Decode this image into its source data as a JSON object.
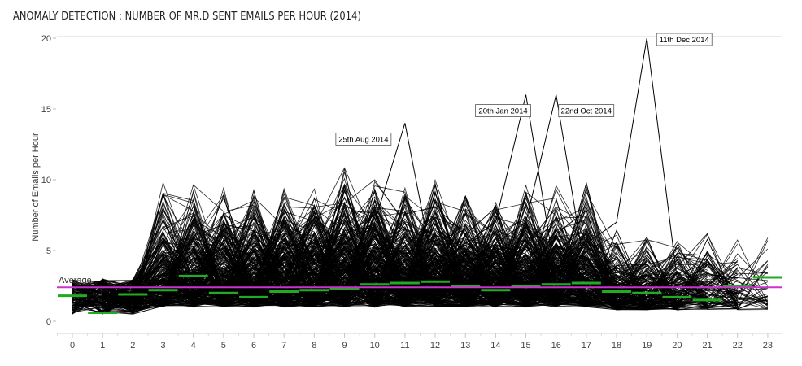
{
  "chart_data": {
    "type": "line",
    "title": "ANOMALY DETECTION : NUMBER OF MR.D SENT EMAILS PER HOUR (2014)",
    "xlabel": "",
    "ylabel": "Number of Emails per Hour",
    "x": [
      0,
      1,
      2,
      3,
      4,
      5,
      6,
      7,
      8,
      9,
      10,
      11,
      12,
      13,
      14,
      15,
      16,
      17,
      18,
      19,
      20,
      21,
      22,
      23
    ],
    "x_tick_labels": [
      "0",
      "1",
      "2",
      "3",
      "4",
      "5",
      "6",
      "7",
      "8",
      "9",
      "10",
      "11",
      "12",
      "13",
      "14",
      "15",
      "16",
      "17",
      "18",
      "19",
      "20",
      "21",
      "22",
      "23"
    ],
    "y_tick_labels": [
      "0",
      "5",
      "10",
      "15",
      "20"
    ],
    "ylim": [
      0,
      20
    ],
    "xlim": [
      -0.5,
      23.5
    ],
    "grid": "horizontal-top-line-only",
    "line_color": "#000000",
    "series_note_count": 365,
    "hourly_mean_color": "#22aa22",
    "hourly_mean": [
      1.8,
      0.6,
      1.9,
      2.2,
      3.2,
      2.0,
      1.7,
      2.1,
      2.2,
      2.3,
      2.6,
      2.7,
      2.8,
      2.5,
      2.2,
      2.5,
      2.6,
      2.7,
      2.1,
      2.0,
      1.7,
      1.5,
      2.5,
      3.1
    ],
    "average_value": 2.4,
    "average_label": "Average",
    "average_color": "#cc33cc",
    "annotations": [
      {
        "label": "25th Aug 2014",
        "x": 11,
        "y": 14
      },
      {
        "label": "20th Jan 2014",
        "x": 15,
        "y": 16
      },
      {
        "label": "22nd Oct 2014",
        "x": 16,
        "y": 16
      },
      {
        "label": "11th Dec 2014",
        "x": 19,
        "y": 20
      }
    ]
  }
}
